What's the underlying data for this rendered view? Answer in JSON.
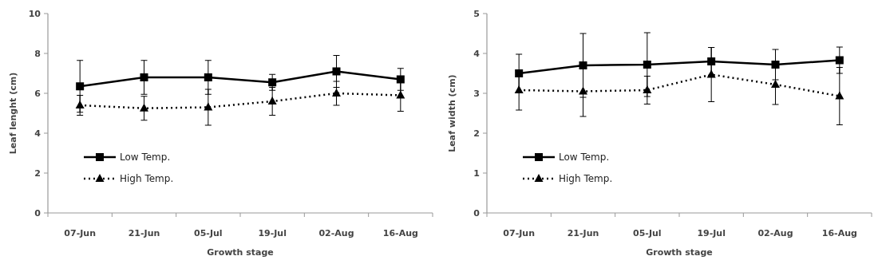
{
  "chart_data": [
    {
      "type": "line",
      "xlabel": "Growth stage",
      "ylabel": "Leaf lenght (cm)",
      "categories": [
        "07-Jun",
        "21-Jun",
        "05-Jul",
        "19-Jul",
        "02-Aug",
        "16-Aug"
      ],
      "ylim": [
        0,
        10
      ],
      "yticks": [
        0,
        2,
        4,
        6,
        8,
        10
      ],
      "grid": false,
      "legend": "bottom left",
      "series": [
        {
          "name": "Low Temp.",
          "color": "#000000",
          "marker": "square",
          "line_style": "solid",
          "values": [
            6.35,
            6.8,
            6.8,
            6.55,
            7.1,
            6.7
          ],
          "errors": [
            1.3,
            0.85,
            0.85,
            0.4,
            0.8,
            0.55
          ]
        },
        {
          "name": "High Temp.",
          "color": "#000000",
          "marker": "triangle",
          "line_style": "dotted",
          "values": [
            5.4,
            5.25,
            5.3,
            5.6,
            6.0,
            5.9
          ],
          "errors": [
            0.5,
            0.6,
            0.9,
            0.7,
            0.6,
            0.8
          ]
        }
      ]
    },
    {
      "type": "line",
      "xlabel": "Growth stage",
      "ylabel": "Leaf width (cm)",
      "categories": [
        "07-Jun",
        "21-Jun",
        "05-Jul",
        "19-Jul",
        "02-Aug",
        "16-Aug"
      ],
      "ylim": [
        0,
        5
      ],
      "yticks": [
        0,
        1,
        2,
        3,
        4,
        5
      ],
      "grid": false,
      "legend": "bottom left",
      "series": [
        {
          "name": "Low Temp.",
          "color": "#000000",
          "marker": "square",
          "line_style": "solid",
          "values": [
            3.5,
            3.7,
            3.72,
            3.8,
            3.72,
            3.83
          ],
          "errors": [
            0.48,
            0.8,
            0.8,
            0.35,
            0.38,
            0.33
          ]
        },
        {
          "name": "High Temp.",
          "color": "#000000",
          "marker": "triangle",
          "line_style": "dotted",
          "values": [
            3.08,
            3.05,
            3.08,
            3.47,
            3.22,
            2.93
          ],
          "errors": [
            0.5,
            0.63,
            0.35,
            0.68,
            0.5,
            0.72
          ]
        }
      ]
    }
  ]
}
